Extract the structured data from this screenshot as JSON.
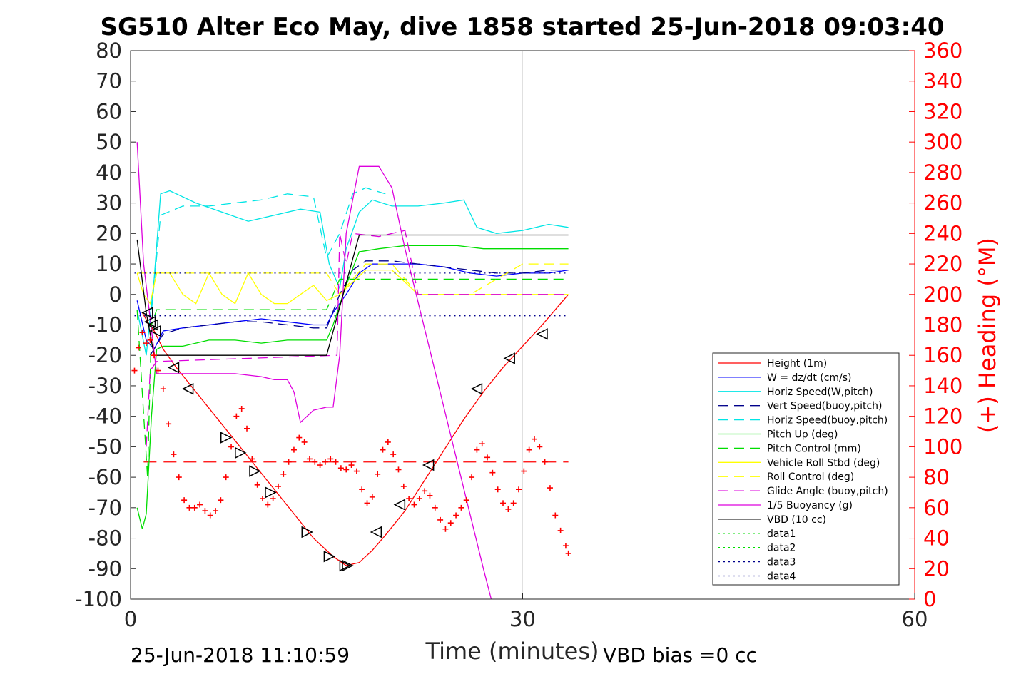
{
  "chart_data": {
    "type": "line",
    "title": "SG510 Alter Eco May, dive 1858 started 25-Jun-2018 09:03:40",
    "xlabel": "Time (minutes)",
    "ylabel_right": "(+) Heading (°M)",
    "xlim": [
      0,
      60
    ],
    "ylim": [
      -100,
      80
    ],
    "ylim_right": [
      0,
      360
    ],
    "x_ticks": [
      0,
      30,
      60
    ],
    "y_ticks": [
      -100,
      -90,
      -80,
      -70,
      -60,
      -50,
      -40,
      -30,
      -20,
      -10,
      0,
      10,
      20,
      30,
      40,
      50,
      60,
      70,
      80
    ],
    "y_ticks_right": [
      0,
      20,
      40,
      60,
      80,
      100,
      120,
      140,
      160,
      180,
      200,
      220,
      240,
      260,
      280,
      300,
      320,
      340,
      360
    ],
    "grid": "x at 30 only",
    "legend_placement": "bottom-right",
    "footer_left": "25-Jun-2018 11:10:59",
    "footer_right": "VBD bias =0 cc",
    "colors": {
      "axis": "#262626",
      "right_axis": "#ff0000",
      "red": "#ff0000",
      "blue": "#0000ff",
      "darkblue": "#00008b",
      "cyan": "#00e5e5",
      "green": "#00dd00",
      "yellow": "#ffff00",
      "magenta": "#dd00dd",
      "black": "#000000"
    },
    "series": [
      {
        "name": "Height (1m)",
        "color": "#ff0000",
        "style": "solid",
        "x": [
          0.9,
          1.3,
          1.8,
          2.5,
          3.5,
          5,
          6.5,
          8,
          9.5,
          11,
          12.5,
          14,
          15.5,
          16.5,
          17.5,
          18.5,
          19.5,
          21,
          22.5,
          24,
          25.5,
          27,
          28.5,
          30,
          31.5,
          33.5
        ],
        "y": [
          -6,
          -9,
          -12,
          -18,
          -24,
          -32,
          -40,
          -48,
          -56,
          -64,
          -72,
          -80,
          -86,
          -89,
          -88,
          -84,
          -79,
          -71,
          -61,
          -51,
          -41,
          -32,
          -24,
          -17,
          -10,
          0
        ]
      },
      {
        "name": "W = dz/dt (cm/s)",
        "color": "#0000ff",
        "style": "solid",
        "x": [
          0.5,
          1.2,
          1.8,
          2.5,
          4,
          6,
          8,
          10,
          12,
          14,
          15,
          15.5,
          16.5,
          17.5,
          18.5,
          20,
          22,
          24,
          26,
          28,
          30,
          32,
          33.5
        ],
        "y": [
          -2,
          -15,
          -18,
          -12,
          -11,
          -10,
          -9,
          -8,
          -9,
          -10,
          -10,
          -6,
          0,
          7,
          10,
          10,
          10,
          9,
          7,
          6,
          7,
          7,
          8
        ]
      },
      {
        "name": "Horiz Speed(W,pitch)",
        "color": "#00e5e5",
        "style": "solid",
        "x": [
          0.5,
          1.2,
          1.8,
          2.3,
          3,
          5,
          7,
          9,
          11,
          13,
          14.5,
          15.2,
          16,
          16.5,
          17.5,
          18.5,
          20,
          22,
          24,
          25.5,
          26.5,
          28,
          30,
          32,
          33.5
        ],
        "y": [
          -5,
          -20,
          5,
          33,
          34,
          30,
          27,
          24,
          26,
          28,
          27,
          10,
          2,
          15,
          27,
          31,
          29,
          29,
          30,
          31,
          22,
          20,
          21,
          23,
          22
        ]
      },
      {
        "name": "Vert Speed(buoy,pitch)",
        "color": "#00008b",
        "style": "dashed",
        "x": [
          1.5,
          2.5,
          4,
          6,
          8,
          10,
          12,
          14,
          15,
          16,
          17,
          18,
          20,
          22,
          24,
          26,
          28,
          30,
          32,
          33.5
        ],
        "y": [
          -20,
          -13,
          -11,
          -10,
          -9,
          -9,
          -10,
          -11,
          -11,
          0,
          8,
          11,
          11,
          10,
          9,
          8,
          7,
          7,
          8,
          8
        ]
      },
      {
        "name": "Horiz Speed(buoy,pitch)",
        "color": "#00e5e5",
        "style": "dashed",
        "x": [
          1.5,
          2.3,
          4,
          6,
          8,
          10,
          12,
          14,
          15,
          16,
          17,
          18,
          19.5
        ],
        "y": [
          -10,
          26,
          29,
          29,
          30,
          31,
          33,
          32,
          12,
          20,
          33,
          35,
          33
        ]
      },
      {
        "name": "Pitch Up (deg)",
        "color": "#00dd00",
        "style": "solid",
        "x": [
          0.5,
          0.9,
          1.2,
          1.6,
          2,
          2.5,
          4,
          6,
          8,
          10,
          12,
          14,
          15,
          15.5,
          16.5,
          17.5,
          19,
          21,
          23,
          25,
          27,
          29,
          31,
          33.5
        ],
        "y": [
          -70,
          -77,
          -72,
          -40,
          -18,
          -17,
          -17,
          -15,
          -15,
          -16,
          -15,
          -15,
          -15,
          -10,
          3,
          14,
          15,
          16,
          16,
          16,
          15,
          15,
          15,
          15
        ]
      },
      {
        "name": "Pitch Control (mm)",
        "color": "#00dd00",
        "style": "dashed",
        "x": [
          0.5,
          1.3,
          1.6,
          2,
          3,
          6,
          9,
          12,
          14.5,
          15,
          16,
          17,
          20,
          25,
          30,
          33.5
        ],
        "y": [
          -5,
          -60,
          -10,
          -5,
          -5,
          -5,
          -5,
          -5,
          -5,
          -5,
          5,
          5,
          5,
          5,
          5,
          5
        ]
      },
      {
        "name": "Vehicle Roll Stbd (deg)",
        "color": "#ffff00",
        "style": "solid",
        "x": [
          0.5,
          1,
          1.5,
          2,
          3,
          4,
          5,
          6,
          7,
          8,
          9,
          10,
          11,
          12,
          13,
          14,
          15,
          16,
          18,
          20,
          21.5,
          22,
          24,
          26,
          28,
          30,
          32,
          33.5
        ],
        "y": [
          7,
          0,
          -3,
          7,
          7,
          0,
          -3,
          7,
          0,
          -3,
          7,
          0,
          -3,
          -3,
          0,
          3,
          -2,
          0,
          8,
          8,
          2,
          0,
          0,
          0,
          0,
          0,
          0,
          0
        ]
      },
      {
        "name": "Roll Control (deg)",
        "color": "#ffff00",
        "style": "dashed",
        "x": [
          0.5,
          3,
          6,
          9,
          12,
          15,
          16,
          18,
          20,
          22,
          26,
          30,
          33.5
        ],
        "y": [
          7,
          7,
          7,
          7,
          7,
          7,
          0,
          10,
          10,
          0,
          0,
          10,
          10
        ]
      },
      {
        "name": "Glide Angle (buoy,pitch)",
        "color": "#dd00dd",
        "style": "dashed",
        "x": [
          1.2,
          1.5,
          2,
          15.8,
          16,
          16.5,
          17,
          19,
          21,
          22,
          25,
          30,
          33.5
        ],
        "y": [
          -50,
          -25,
          -22,
          -20,
          20,
          10,
          20,
          19,
          21,
          0,
          0,
          0,
          0
        ]
      },
      {
        "name": "1/5 Buoyancy (g)",
        "color": "#dd00dd",
        "style": "solid",
        "x": [
          0.5,
          1,
          1.5,
          2,
          4,
          6,
          8,
          10,
          11,
          12,
          12.5,
          13,
          14,
          15,
          15.5,
          16,
          16.5,
          17.5,
          19,
          20,
          21,
          23,
          25,
          27,
          27.6
        ],
        "y": [
          50,
          10,
          -8,
          -26,
          -26,
          -26,
          -26,
          -27,
          -28,
          -28,
          -32,
          -42,
          -38,
          -37,
          -37,
          -20,
          20,
          42,
          42,
          35,
          15,
          -20,
          -55,
          -90,
          -100
        ]
      },
      {
        "name": "VBD (10 cc)",
        "color": "#000000",
        "style": "solid",
        "x": [
          0.5,
          1.2,
          1.8,
          2.5,
          5,
          10,
          15,
          17.5,
          20,
          25,
          30,
          33.5
        ],
        "y": [
          18,
          -6,
          -20,
          -20,
          -20,
          -20,
          -20,
          19.5,
          19.5,
          19.5,
          19.5,
          19.5
        ]
      },
      {
        "name": "data1",
        "color": "#00dd00",
        "style": "dotted",
        "x": [],
        "y": []
      },
      {
        "name": "data2",
        "color": "#00dd00",
        "style": "dotted",
        "x": [],
        "y": []
      },
      {
        "name": "data3",
        "color": "#00008b",
        "style": "dotted",
        "x": [
          0.3,
          33.5
        ],
        "y": [
          7,
          7
        ]
      },
      {
        "name": "data4",
        "color": "#00008b",
        "style": "dotted",
        "x": [
          0.3,
          33.5
        ],
        "y": [
          -7,
          -7
        ]
      }
    ],
    "reference_line": {
      "color": "#ff0000",
      "style": "dashed",
      "x": [
        1,
        33.5
      ],
      "y": [
        -55,
        -55
      ]
    },
    "heading_points": {
      "color": "#ff0000",
      "marker": "+",
      "axis": "right",
      "x": [
        0.3,
        0.6,
        0.9,
        1.2,
        1.5,
        1.8,
        2.1,
        2.5,
        2.9,
        3.3,
        3.7,
        4.1,
        4.5,
        4.9,
        5.3,
        5.7,
        6.1,
        6.5,
        6.9,
        7.3,
        7.7,
        8.1,
        8.5,
        8.9,
        9.3,
        9.7,
        10.1,
        10.5,
        10.9,
        11.3,
        11.7,
        12.1,
        12.5,
        12.9,
        13.3,
        13.7,
        14.1,
        14.5,
        14.9,
        15.3,
        15.7,
        16.1,
        16.5,
        16.9,
        17.3,
        17.7,
        18.1,
        18.5,
        18.9,
        19.3,
        19.7,
        20.1,
        20.5,
        20.9,
        21.3,
        21.7,
        22.1,
        22.5,
        22.9,
        23.3,
        23.7,
        24.1,
        24.5,
        24.9,
        25.3,
        25.7,
        26.1,
        26.5,
        26.9,
        27.3,
        27.7,
        28.1,
        28.5,
        28.9,
        29.3,
        29.7,
        30.1,
        30.5,
        30.9,
        31.3,
        31.7,
        32.1,
        32.5,
        32.9,
        33.3,
        33.5
      ],
      "y": [
        150,
        165,
        175,
        168,
        170,
        160,
        150,
        138,
        115,
        95,
        80,
        65,
        60,
        60,
        62,
        58,
        55,
        58,
        65,
        80,
        100,
        120,
        125,
        112,
        92,
        75,
        66,
        62,
        66,
        74,
        82,
        90,
        98,
        106,
        103,
        92,
        90,
        88,
        90,
        92,
        90,
        86,
        85,
        88,
        84,
        72,
        63,
        67,
        82,
        98,
        103,
        95,
        85,
        74,
        66,
        62,
        66,
        71,
        68,
        60,
        52,
        46,
        50,
        55,
        60,
        65,
        80,
        98,
        102,
        93,
        83,
        72,
        63,
        59,
        63,
        72,
        84,
        98,
        105,
        100,
        90,
        73,
        55,
        45,
        35,
        30
      ]
    },
    "depth_markers": {
      "color": "#000000",
      "marker": "triangle",
      "note": "left-pointing on descent, right-pointing on ascent",
      "x": [
        1.3,
        1.5,
        1.7,
        1.9,
        3.3,
        4.4,
        7.3,
        8.4,
        9.5,
        10.7,
        13.5,
        15.2,
        16.4,
        16.6,
        18.8,
        20.6,
        22.8,
        26.5,
        29,
        31.5
      ],
      "y": [
        -6,
        -9,
        -10,
        -12,
        -24,
        -31,
        -47,
        -52,
        -58,
        -65,
        -78,
        -86,
        -89,
        -89,
        -78,
        -69,
        -56,
        -31,
        -21,
        -13
      ],
      "direction": [
        "left",
        "left",
        "left",
        "left",
        "left",
        "left",
        "right",
        "right",
        "right",
        "right",
        "right",
        "right",
        "right",
        "right",
        "left",
        "left",
        "left",
        "left",
        "left",
        "left"
      ]
    }
  }
}
